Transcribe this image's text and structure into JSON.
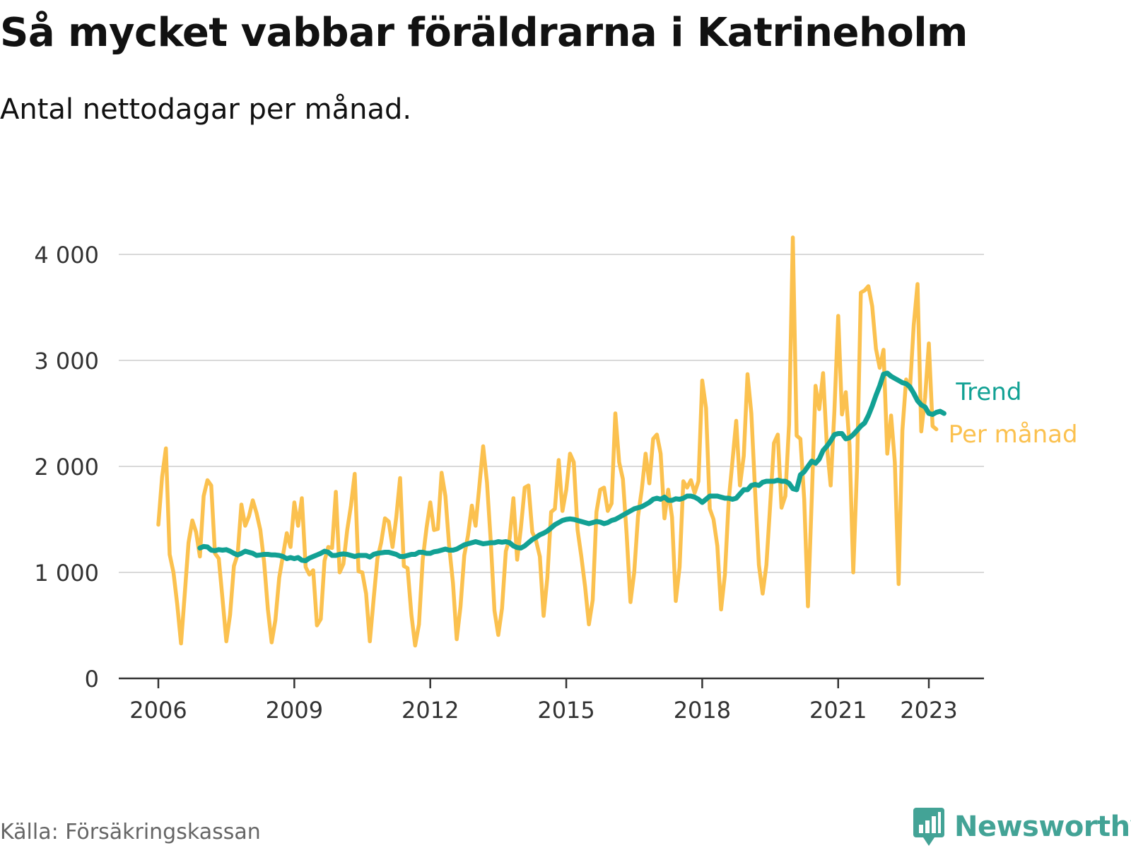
{
  "title": "Så mycket vabbar föräldrarna i Katrineholm",
  "subtitle": "Antal nettodagar per månad.",
  "source": "Källa: Försäkringskassan",
  "brand": "Newsworthy",
  "colors": {
    "trend": "#12a194",
    "monthly": "#fbc14f",
    "grid": "#d9d9d9",
    "axis": "#333333",
    "brand": "#43a396"
  },
  "chart_data": {
    "type": "line",
    "title": "Så mycket vabbar föräldrarna i Katrineholm",
    "subtitle": "Antal nettodagar per månad.",
    "xlabel": "",
    "ylabel": "",
    "ylim": [
      0,
      4000
    ],
    "yticks": [
      0,
      1000,
      2000,
      3000,
      4000
    ],
    "ytick_labels": [
      "0",
      "1 000",
      "2 000",
      "3 000",
      "4 000"
    ],
    "xticks": [
      2006,
      2009,
      2012,
      2015,
      2018,
      2021,
      2023
    ],
    "xtick_labels": [
      "2006",
      "2009",
      "2012",
      "2015",
      "2018",
      "2021",
      "2023"
    ],
    "xlim": [
      2006,
      2024.25
    ],
    "grid": true,
    "legend": "direct labels at right end of lines",
    "series": [
      {
        "name": "Per månad",
        "color": "#fbc14f",
        "x_start": "2006-01",
        "x_step": "month",
        "values": [
          1450,
          1900,
          2170,
          1170,
          1000,
          700,
          330,
          800,
          1280,
          1490,
          1380,
          1150,
          1720,
          1870,
          1820,
          1180,
          1130,
          750,
          350,
          600,
          1060,
          1170,
          1640,
          1440,
          1530,
          1680,
          1560,
          1400,
          1100,
          650,
          340,
          550,
          950,
          1160,
          1370,
          1240,
          1660,
          1440,
          1700,
          1050,
          980,
          1020,
          500,
          560,
          1110,
          1240,
          1230,
          1760,
          1000,
          1080,
          1400,
          1630,
          1930,
          1010,
          1000,
          800,
          350,
          750,
          1130,
          1280,
          1510,
          1480,
          1240,
          1520,
          1890,
          1060,
          1040,
          600,
          310,
          510,
          1120,
          1420,
          1660,
          1400,
          1410,
          1940,
          1720,
          1250,
          900,
          370,
          680,
          1160,
          1350,
          1630,
          1440,
          1820,
          2190,
          1850,
          1300,
          640,
          410,
          660,
          1200,
          1320,
          1700,
          1120,
          1420,
          1800,
          1820,
          1380,
          1300,
          1150,
          590,
          950,
          1570,
          1600,
          2060,
          1580,
          1780,
          2120,
          2040,
          1400,
          1150,
          860,
          510,
          740,
          1570,
          1780,
          1800,
          1580,
          1650,
          2500,
          2040,
          1880,
          1360,
          720,
          1000,
          1530,
          1780,
          2120,
          1840,
          2260,
          2300,
          2120,
          1510,
          1780,
          1520,
          730,
          1050,
          1860,
          1800,
          1870,
          1750,
          1860,
          2810,
          2550,
          1600,
          1500,
          1250,
          650,
          980,
          1670,
          2050,
          2430,
          1820,
          2100,
          2870,
          2500,
          1770,
          1070,
          800,
          1070,
          1640,
          2220,
          2300,
          1610,
          1720,
          2400,
          4160,
          2290,
          2260,
          1690,
          680,
          1700,
          2760,
          2540,
          2880,
          2200,
          1820,
          2520,
          3420,
          2490,
          2700,
          2200,
          1000,
          2000,
          3640,
          3660,
          3700,
          3510,
          3110,
          2930,
          3100,
          2120,
          2480,
          2040,
          890,
          2340,
          2820,
          2730,
          3330,
          3720,
          2330,
          2650,
          3160,
          2380,
          2350
        ]
      },
      {
        "name": "Trend",
        "color": "#12a194",
        "x_start": "2006-12",
        "x_step": "month",
        "values": [
          1230,
          1245,
          1240,
          1210,
          1205,
          1215,
          1210,
          1215,
          1200,
          1180,
          1165,
          1180,
          1200,
          1190,
          1180,
          1160,
          1165,
          1170,
          1170,
          1165,
          1165,
          1160,
          1150,
          1130,
          1140,
          1130,
          1140,
          1115,
          1110,
          1135,
          1150,
          1165,
          1180,
          1200,
          1190,
          1160,
          1160,
          1170,
          1175,
          1170,
          1160,
          1150,
          1160,
          1160,
          1160,
          1145,
          1170,
          1180,
          1185,
          1190,
          1190,
          1180,
          1170,
          1150,
          1150,
          1160,
          1170,
          1170,
          1190,
          1190,
          1180,
          1180,
          1195,
          1200,
          1210,
          1220,
          1210,
          1210,
          1220,
          1240,
          1260,
          1270,
          1280,
          1290,
          1280,
          1270,
          1275,
          1280,
          1280,
          1290,
          1285,
          1290,
          1280,
          1250,
          1235,
          1230,
          1250,
          1280,
          1310,
          1330,
          1355,
          1370,
          1390,
          1420,
          1450,
          1470,
          1490,
          1500,
          1505,
          1500,
          1490,
          1480,
          1470,
          1460,
          1470,
          1480,
          1475,
          1460,
          1470,
          1490,
          1500,
          1520,
          1540,
          1560,
          1580,
          1600,
          1610,
          1620,
          1640,
          1660,
          1690,
          1700,
          1690,
          1710,
          1680,
          1680,
          1695,
          1690,
          1700,
          1720,
          1720,
          1710,
          1690,
          1660,
          1690,
          1720,
          1720,
          1720,
          1710,
          1700,
          1700,
          1690,
          1700,
          1740,
          1780,
          1780,
          1820,
          1830,
          1820,
          1850,
          1860,
          1860,
          1860,
          1870,
          1860,
          1860,
          1840,
          1790,
          1780,
          1920,
          1950,
          2000,
          2050,
          2030,
          2070,
          2150,
          2190,
          2240,
          2300,
          2310,
          2310,
          2260,
          2270,
          2300,
          2340,
          2380,
          2410,
          2480,
          2570,
          2670,
          2760,
          2870,
          2880,
          2850,
          2830,
          2810,
          2790,
          2780,
          2750,
          2690,
          2620,
          2580,
          2560,
          2500,
          2490,
          2510,
          2520,
          2500
        ]
      }
    ]
  }
}
